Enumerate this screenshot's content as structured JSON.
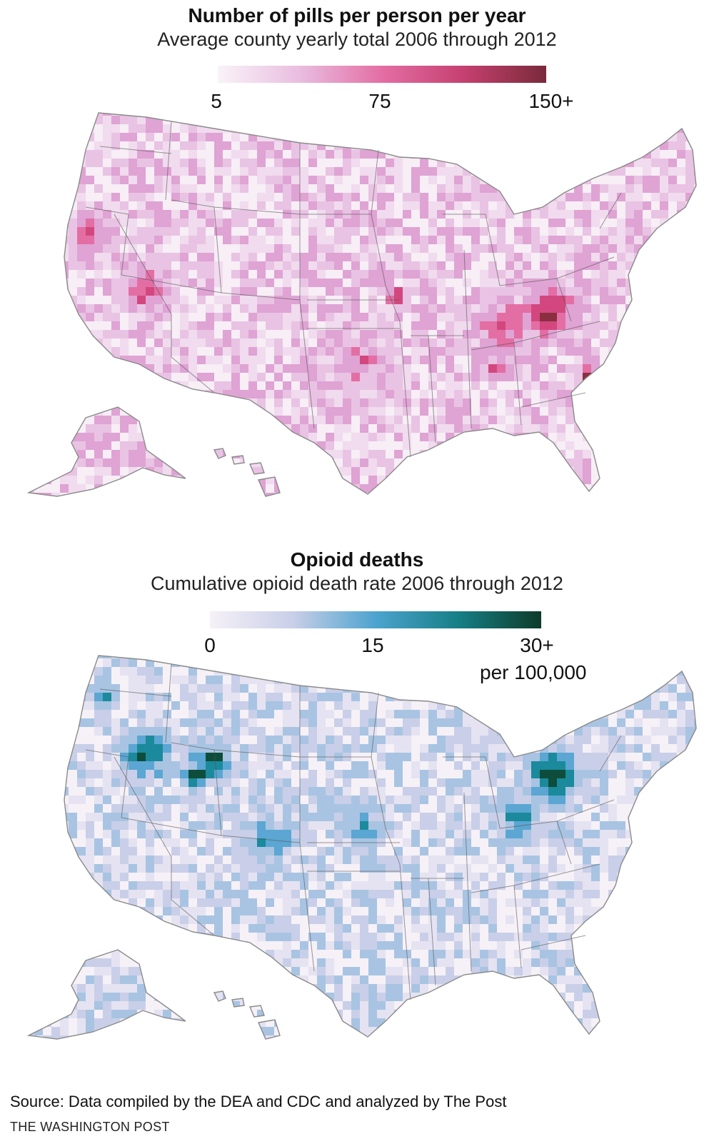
{
  "maps": [
    {
      "title": "Number of pills per person per year",
      "subtitle": "Average county yearly total 2006 through 2012",
      "legend": {
        "ticks": [
          "5",
          "75",
          "150+"
        ],
        "unit": "",
        "colors": [
          "#f9f3f8",
          "#e9bde0",
          "#e36ea4",
          "#c54070",
          "#7a2a3a"
        ]
      },
      "base_color": "#f1dbee",
      "palette": [
        "#f7eef6",
        "#f1dbee",
        "#e9c3e3",
        "#dfa3d4",
        "#e36ea4",
        "#d3477f",
        "#8a2f3f"
      ],
      "hotspots": [
        {
          "region": "Appalachia",
          "color": "#7a2a3a"
        },
        {
          "region": "Nevada",
          "color": "#e36ea4"
        },
        {
          "region": "Northern California",
          "color": "#e36ea4"
        },
        {
          "region": "South Carolina",
          "color": "#8a2f3f"
        }
      ]
    },
    {
      "title": "Opioid deaths",
      "subtitle": "Cumulative opioid death rate 2006 through 2012",
      "legend": {
        "ticks": [
          "0",
          "15",
          "30+"
        ],
        "unit": "per 100,000",
        "colors": [
          "#f6f1f7",
          "#c9cfe8",
          "#4da3cf",
          "#167f86",
          "#0d3b2a"
        ]
      },
      "base_color": "#e5e3f1",
      "palette": [
        "#f6f1f7",
        "#e5e3f1",
        "#c9cfe8",
        "#a8c4e2",
        "#5ba6d2",
        "#1b8a9c",
        "#0e4d3b"
      ],
      "hotspots": [
        {
          "region": "Appalachia",
          "color": "#0d3b2a"
        },
        {
          "region": "Nevada",
          "color": "#1b8a9c"
        },
        {
          "region": "Utah",
          "color": "#167f86"
        },
        {
          "region": "Oklahoma",
          "color": "#4da3cf"
        },
        {
          "region": "New Mexico",
          "color": "#4da3cf"
        }
      ]
    }
  ],
  "footer": {
    "source": "Source: Data compiled by the DEA and CDC and analyzed by The Post",
    "credit": "THE WASHINGTON POST"
  }
}
